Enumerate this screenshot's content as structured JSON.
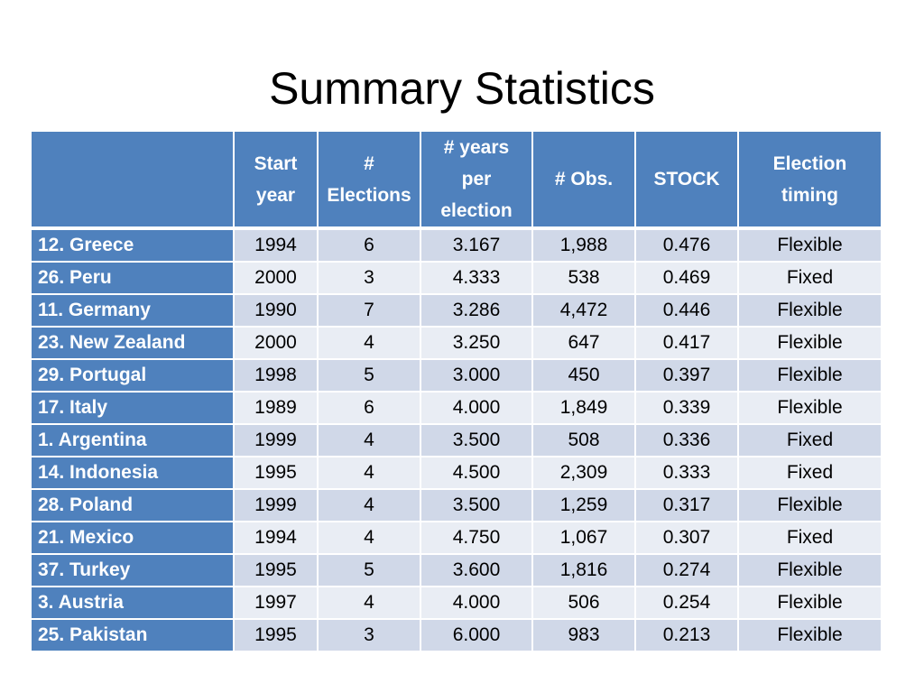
{
  "slide": {
    "title": "Summary Statistics"
  },
  "table": {
    "headers": [
      [
        ""
      ],
      [
        "Start",
        "year"
      ],
      [
        "#",
        "Elections"
      ],
      [
        "# years",
        "per",
        "election"
      ],
      [
        "# Obs."
      ],
      [
        "STOCK"
      ],
      [
        "Election",
        "timing"
      ]
    ],
    "rows": [
      [
        "12. Greece",
        "1994",
        "6",
        "3.167",
        "1,988",
        "0.476",
        "Flexible"
      ],
      [
        "26. Peru",
        "2000",
        "3",
        "4.333",
        "538",
        "0.469",
        "Fixed"
      ],
      [
        "11. Germany",
        "1990",
        "7",
        "3.286",
        "4,472",
        "0.446",
        "Flexible"
      ],
      [
        "23. New Zealand",
        "2000",
        "4",
        "3.250",
        "647",
        "0.417",
        "Flexible"
      ],
      [
        "29. Portugal",
        "1998",
        "5",
        "3.000",
        "450",
        "0.397",
        "Flexible"
      ],
      [
        "17. Italy",
        "1989",
        "6",
        "4.000",
        "1,849",
        "0.339",
        "Flexible"
      ],
      [
        "1. Argentina",
        "1999",
        "4",
        "3.500",
        "508",
        "0.336",
        "Fixed"
      ],
      [
        "14. Indonesia",
        "1995",
        "4",
        "4.500",
        "2,309",
        "0.333",
        "Fixed"
      ],
      [
        "28. Poland",
        "1999",
        "4",
        "3.500",
        "1,259",
        "0.317",
        "Flexible"
      ],
      [
        "21. Mexico",
        "1994",
        "4",
        "4.750",
        "1,067",
        "0.307",
        "Fixed"
      ],
      [
        "37. Turkey",
        "1995",
        "5",
        "3.600",
        "1,816",
        "0.274",
        "Flexible"
      ],
      [
        "3. Austria",
        "1997",
        "4",
        "4.000",
        "506",
        "0.254",
        "Flexible"
      ],
      [
        "25. Pakistan",
        "1995",
        "3",
        "6.000",
        "983",
        "0.213",
        "Flexible"
      ]
    ]
  },
  "colors": {
    "header_fill": "#4f81bd",
    "row_odd_fill": "#d0d8e8",
    "row_even_fill": "#e9edf4",
    "header_text": "#ffffff"
  }
}
